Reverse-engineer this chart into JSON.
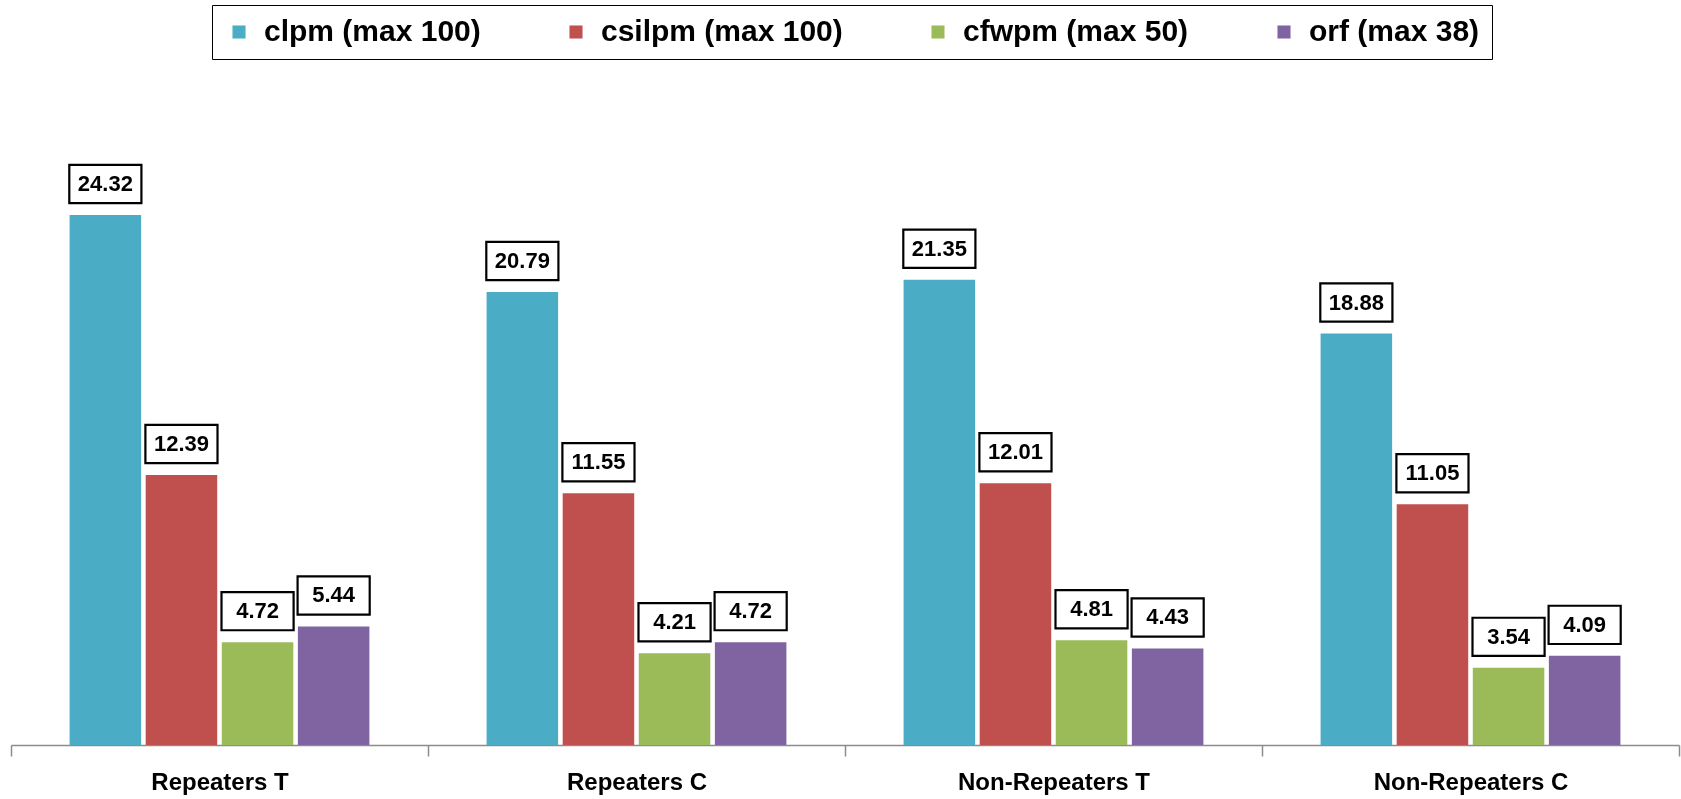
{
  "chart_data": {
    "type": "bar",
    "categories": [
      "Repeaters T",
      "Repeaters C",
      "Non-Repeaters T",
      "Non-Repeaters C"
    ],
    "series": [
      {
        "name": "clpm (max 100)",
        "color": "#4bacc6",
        "values": [
          24.32,
          20.79,
          21.35,
          18.88
        ]
      },
      {
        "name": "csilpm (max 100)",
        "color": "#c0504d",
        "values": [
          12.39,
          11.55,
          12.01,
          11.05
        ]
      },
      {
        "name": "cfwpm (max 50)",
        "color": "#9bbb59",
        "values": [
          4.72,
          4.21,
          4.81,
          3.54
        ]
      },
      {
        "name": "orf (max 38)",
        "color": "#8064a2",
        "values": [
          5.44,
          4.72,
          4.43,
          4.09
        ]
      }
    ],
    "data_labels": true,
    "legend": "top",
    "grid": false,
    "tick_labels": "x"
  }
}
